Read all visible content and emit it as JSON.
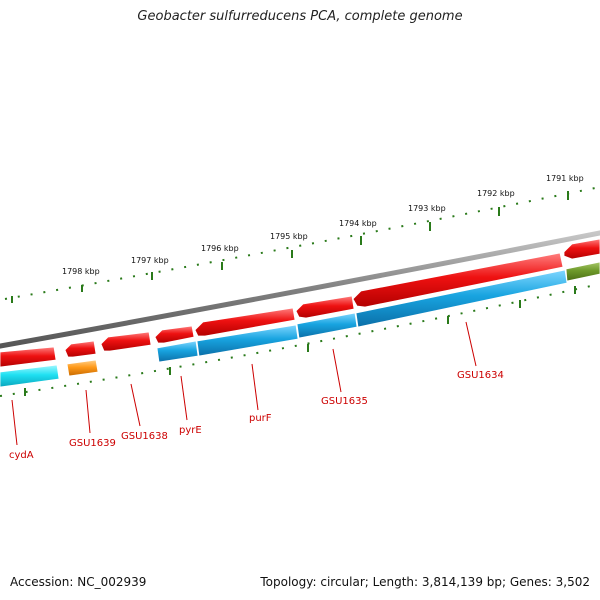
{
  "header": {
    "title": "Geobacter sulfurreducens PCA, complete genome"
  },
  "footer": {
    "accession": "Accession: NC_002939",
    "topology": "Topology: circular; Length: 3,814,139 bp; Genes: 3,502"
  },
  "scale_labels": [
    "1791 kbp",
    "1792 kbp",
    "1793 kbp",
    "1794 kbp",
    "1795 kbp",
    "1796 kbp",
    "1797 kbp",
    "1798 kbp"
  ],
  "gene_labels": [
    "GSU1634",
    "GSU1635",
    "purF",
    "pyrE",
    "GSU1638",
    "GSU1639",
    "cydA"
  ],
  "colors": {
    "backbone": "#808080",
    "gene_forward": "#ee1111",
    "cds_blue": "#1aa6e0",
    "cds_cyan": "#22e0f0",
    "cds_orange": "#ff9a1a",
    "cds_olive": "#6e9a2a",
    "ticks": "#2a7a1a",
    "labels": "#cc0000"
  }
}
